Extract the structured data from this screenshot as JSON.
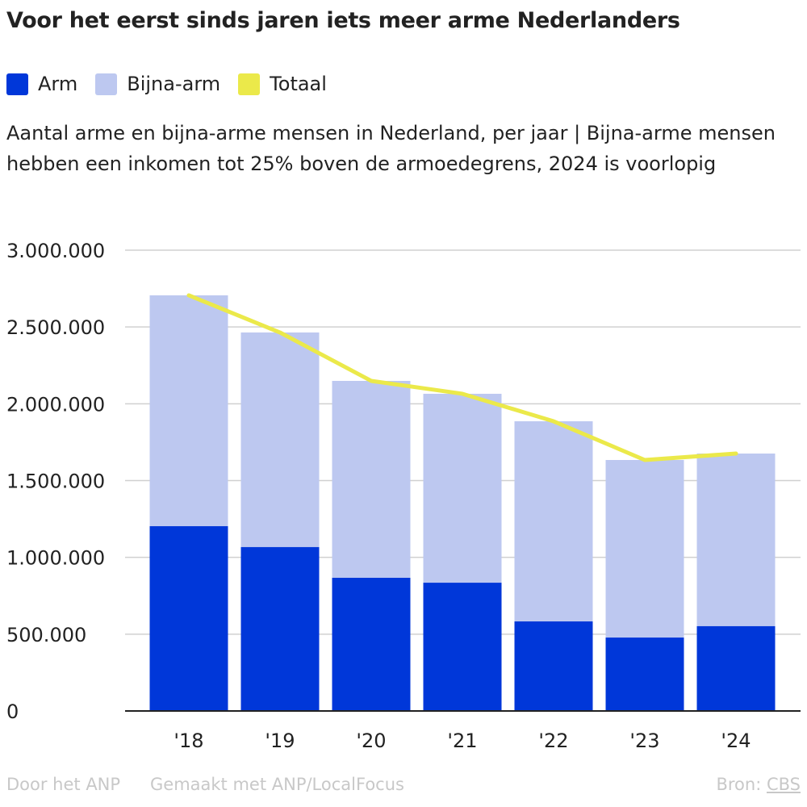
{
  "title": "Voor het eerst sinds jaren iets meer arme Nederlanders",
  "subtitle": "Aantal arme en bijna-arme mensen in Nederland, per jaar | Bijna-arme mensen hebben een inkomen tot 25% boven de armoedegrens, 2024 is voorlopig",
  "footer": {
    "by": "Door het ANP",
    "made_with": "Gemaakt met ANP/LocalFocus",
    "source_label": "Bron:",
    "source": "CBS"
  },
  "chart_data": {
    "type": "bar",
    "stacked": true,
    "categories": [
      "'18",
      "'19",
      "'20",
      "'21",
      "'22",
      "'23",
      "'24"
    ],
    "series": [
      {
        "name": "Arm",
        "color": "#0037d9",
        "values": [
          1203000,
          1067000,
          867000,
          835000,
          583000,
          478000,
          552000
        ]
      },
      {
        "name": "Bijna-arm",
        "color": "#bdc8f0",
        "values": [
          1503000,
          1397000,
          1282000,
          1230000,
          1303000,
          1156000,
          1124000
        ]
      },
      {
        "name": "Totaal",
        "type": "line",
        "color": "#ebe94a",
        "values": [
          2706000,
          2464000,
          2149000,
          2065000,
          1886000,
          1634000,
          1676000
        ]
      }
    ],
    "ylim": [
      0,
      3000000
    ],
    "yticks": [
      "0",
      "500.000",
      "1.000.000",
      "1.500.000",
      "2.000.000",
      "2.500.000",
      "3.000.000"
    ],
    "grid": true,
    "legend": "top-left"
  }
}
